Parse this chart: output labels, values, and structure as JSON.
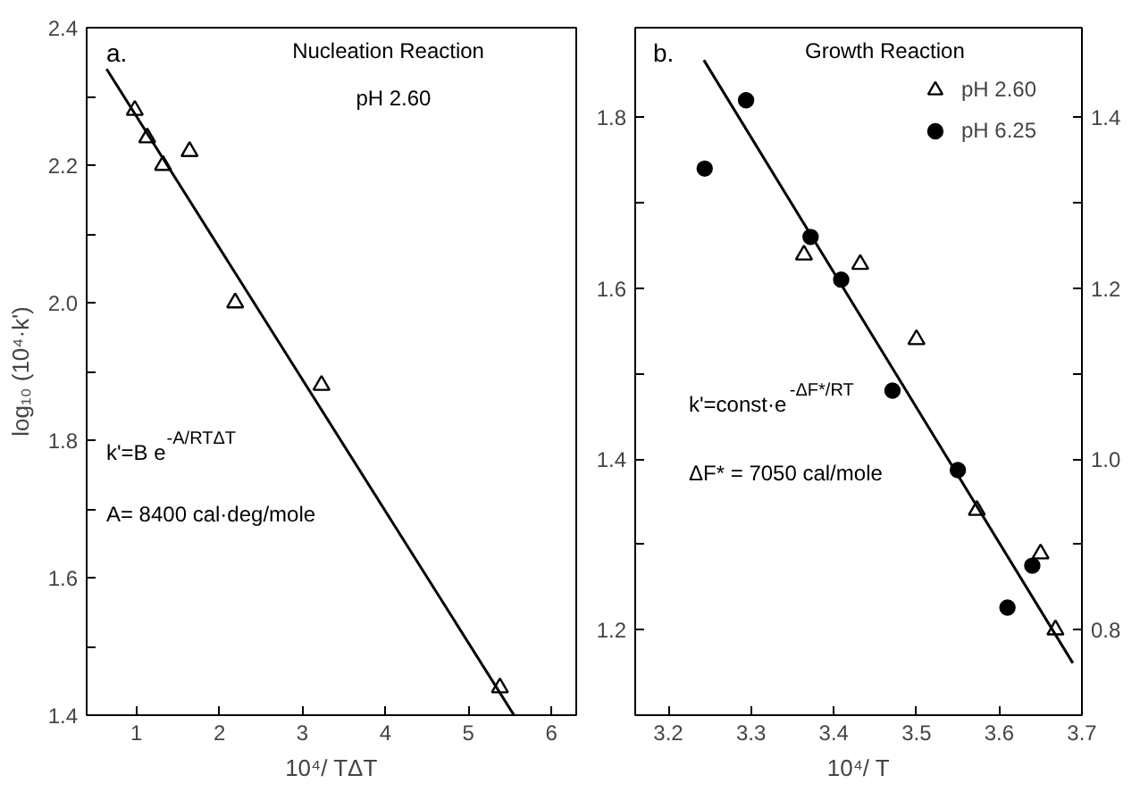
{
  "chart_data": [
    {
      "type": "scatter",
      "xlabel": "10⁴/ TΔT",
      "ylabel": "log₁₀ (10⁴·k')",
      "annotations": [
        "a.",
        "Nucleation Reaction",
        "pH 2.60",
        "k'=B e$^{-A/RTΔT}$",
        "A= 8400 cal·deg/mole"
      ],
      "series": [
        {
          "color": "#000000",
          "marker": "triangle",
          "x": [
            0.98,
            1.13,
            1.32,
            1.64,
            2.19,
            3.23,
            5.38
          ],
          "values": [
            2.28,
            2.24,
            2.2,
            2.22,
            2.0,
            1.88,
            1.44
          ]
        },
        {
          "type": "line",
          "color": "#000000",
          "line_style": "solid",
          "x": [
            0.64,
            5.55
          ],
          "values": [
            2.34,
            1.4
          ]
        }
      ],
      "xlim": [
        0.4,
        6.3
      ],
      "ylim": [
        1.4,
        2.4
      ],
      "xticks": [
        1,
        2,
        3,
        4,
        5,
        6
      ],
      "yticks": [
        1.4,
        {
          "value": 1.5,
          "label": null
        },
        1.6,
        {
          "value": 1.7,
          "label": null
        },
        1.8,
        {
          "value": 1.9,
          "label": null
        },
        {
          "value": 2.0,
          "label": "2.0"
        },
        {
          "value": 2.1,
          "label": null
        },
        2.2,
        {
          "value": 2.3,
          "label": null
        },
        2.4
      ],
      "grid": false,
      "legend": false
    },
    {
      "type": "scatter",
      "xlabel": "10⁴/ T",
      "annotations": [
        "b.",
        "Growth Reaction",
        "k'=const·e$^{-ΔF*/RT}$",
        "ΔF* = 7050 cal/mole"
      ],
      "series": [
        {
          "name": "pH 2.60",
          "color": "#000000",
          "marker": "triangle",
          "x": [
            3.364,
            3.432,
            3.5,
            3.573,
            3.65,
            3.668
          ],
          "values": [
            1.639,
            1.628,
            1.54,
            1.34,
            1.289,
            1.2
          ]
        },
        {
          "name": "pH 6.25",
          "color": "#000000",
          "marker": "circle",
          "x": [
            3.244,
            3.294,
            3.372,
            3.409,
            3.471,
            3.55,
            3.61,
            3.64
          ],
          "values": [
            1.74,
            1.82,
            1.66,
            1.61,
            1.48,
            1.387,
            1.226,
            1.275
          ]
        },
        {
          "type": "line",
          "color": "#000000",
          "line_style": "solid",
          "x": [
            3.243,
            3.689
          ],
          "values": [
            1.867,
            1.161
          ]
        }
      ],
      "xlim": [
        3.16,
        3.7
      ],
      "ylim": [
        1.1,
        1.905
      ],
      "xticks": [
        3.2,
        3.3,
        3.4,
        3.5,
        3.6,
        3.7
      ],
      "yticks": [
        1.2,
        {
          "value": 1.3,
          "label": null
        },
        1.4,
        {
          "value": 1.5,
          "label": null
        },
        1.6,
        {
          "value": 1.7,
          "label": null
        },
        1.8
      ],
      "y2lim": [
        0.7,
        1.505
      ],
      "y2ticks": [
        0.8,
        {
          "value": 0.9,
          "label": null
        },
        {
          "value": 1.0,
          "label": "1.0"
        },
        {
          "value": 1.1,
          "label": null
        },
        1.2,
        {
          "value": 1.3,
          "label": null
        },
        1.4
      ],
      "grid": false,
      "legend": "top right"
    }
  ]
}
